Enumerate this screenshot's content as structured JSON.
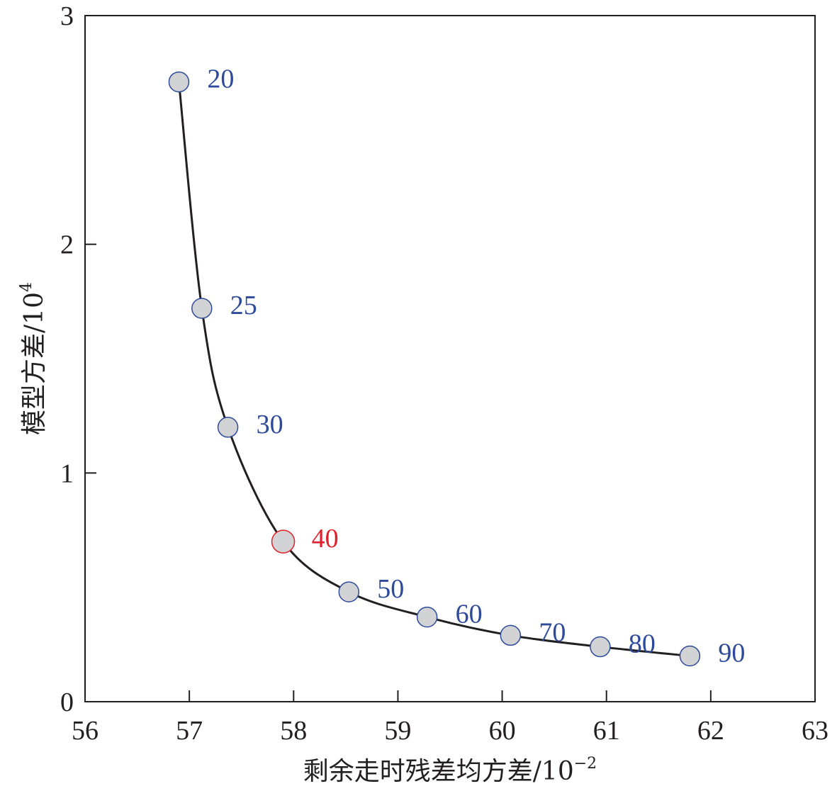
{
  "chart_data": {
    "type": "line",
    "title": "",
    "xlabel": "剩余走时残差均方差/10",
    "xlabel_exponent": "−2",
    "ylabel": "模型方差/10",
    "ylabel_exponent": "4",
    "xlim": [
      56,
      63
    ],
    "ylim": [
      0,
      3
    ],
    "x_ticks": [
      "56",
      "57",
      "58",
      "59",
      "60",
      "61",
      "62",
      "63"
    ],
    "y_ticks": [
      "0",
      "1",
      "2",
      "3"
    ],
    "grid": false,
    "legend": "none",
    "line_color": "#231f20",
    "marker_fill": "#d1d3d4",
    "label_color": "#2e4a9a",
    "highlight_color": "#e0202a",
    "series": [
      {
        "points": [
          {
            "x": 56.9,
            "y": 2.71,
            "label": "20"
          },
          {
            "x": 57.12,
            "y": 1.72,
            "label": "25"
          },
          {
            "x": 57.37,
            "y": 1.2,
            "label": "30"
          },
          {
            "x": 57.9,
            "y": 0.7,
            "label": "40",
            "highlight": true
          },
          {
            "x": 58.53,
            "y": 0.48,
            "label": "50"
          },
          {
            "x": 59.28,
            "y": 0.37,
            "label": "60"
          },
          {
            "x": 60.08,
            "y": 0.29,
            "label": "70"
          },
          {
            "x": 60.94,
            "y": 0.24,
            "label": "80"
          },
          {
            "x": 61.8,
            "y": 0.2,
            "label": "90"
          }
        ]
      }
    ]
  }
}
